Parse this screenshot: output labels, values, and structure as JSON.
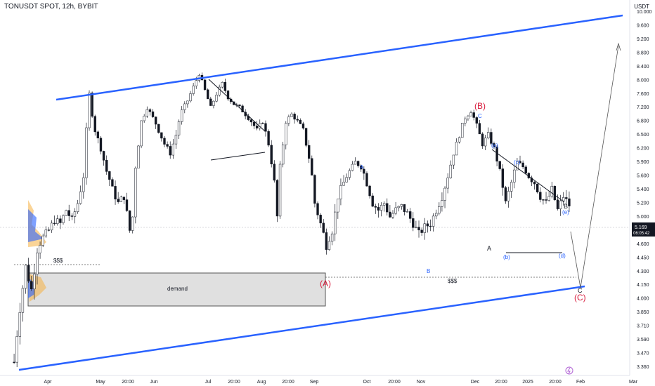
{
  "header": {
    "title": "TONUSDT SPOT, 12h, BYBIT",
    "currency": "USDT"
  },
  "price_badge": {
    "price": "5.169",
    "countdown": "06:05:42"
  },
  "chart_data": {
    "type": "candlestick",
    "ylim": [
      3.3,
      10.2
    ],
    "y_ticks": [
      "10.000",
      "9.600",
      "9.200",
      "8.800",
      "8.400",
      "8.000",
      "7.600",
      "7.200",
      "6.800",
      "6.500",
      "6.200",
      "5.900",
      "5.600",
      "5.400",
      "5.200",
      "5.000",
      "4.800",
      "4.600",
      "4.450",
      "4.300",
      "4.150",
      "4.000",
      "3.850",
      "3.710",
      "3.590",
      "3.470",
      "3.360"
    ],
    "x_ticks": [
      "Apr",
      "May",
      "20:00",
      "Jun",
      "Jul",
      "20:00",
      "Aug",
      "20:00",
      "Sep",
      "Oct",
      "20:00",
      "Nov",
      "Dec",
      "20:00",
      "2025",
      "20:00",
      "Feb",
      "Mar"
    ],
    "close_path": [
      [
        0,
        3.4
      ],
      [
        2,
        3.9
      ],
      [
        4,
        4.35
      ],
      [
        6,
        4.1
      ],
      [
        8,
        4.55
      ],
      [
        10,
        4.7
      ],
      [
        12,
        4.8
      ],
      [
        14,
        4.95
      ],
      [
        16,
        4.9
      ],
      [
        18,
        5.1
      ],
      [
        20,
        4.95
      ],
      [
        22,
        5.2
      ],
      [
        24,
        5.6
      ],
      [
        25,
        6.6
      ],
      [
        26,
        7.6
      ],
      [
        27,
        7.0
      ],
      [
        28,
        6.6
      ],
      [
        30,
        6.2
      ],
      [
        32,
        5.7
      ],
      [
        34,
        5.4
      ],
      [
        36,
        5.2
      ],
      [
        38,
        5.3
      ],
      [
        40,
        4.8
      ],
      [
        41,
        5.0
      ],
      [
        42,
        5.8
      ],
      [
        44,
        6.8
      ],
      [
        46,
        7.2
      ],
      [
        48,
        6.9
      ],
      [
        50,
        6.6
      ],
      [
        52,
        6.3
      ],
      [
        54,
        6.1
      ],
      [
        56,
        6.5
      ],
      [
        58,
        7.1
      ],
      [
        60,
        7.4
      ],
      [
        62,
        7.8
      ],
      [
        64,
        8.2
      ],
      [
        66,
        7.7
      ],
      [
        68,
        7.2
      ],
      [
        70,
        7.6
      ],
      [
        72,
        7.9
      ],
      [
        74,
        7.5
      ],
      [
        76,
        7.3
      ],
      [
        78,
        7.2
      ],
      [
        80,
        7.0
      ],
      [
        82,
        6.8
      ],
      [
        84,
        6.6
      ],
      [
        86,
        6.8
      ],
      [
        88,
        6.3
      ],
      [
        90,
        5.5
      ],
      [
        91,
        5.0
      ],
      [
        92,
        5.8
      ],
      [
        94,
        6.8
      ],
      [
        96,
        7.0
      ],
      [
        98,
        6.8
      ],
      [
        100,
        6.6
      ],
      [
        102,
        6.0
      ],
      [
        104,
        5.2
      ],
      [
        106,
        4.9
      ],
      [
        108,
        4.6
      ],
      [
        110,
        4.8
      ],
      [
        112,
        5.3
      ],
      [
        114,
        5.5
      ],
      [
        116,
        5.7
      ],
      [
        118,
        5.9
      ],
      [
        120,
        5.8
      ],
      [
        122,
        5.5
      ],
      [
        124,
        5.2
      ],
      [
        126,
        5.1
      ],
      [
        128,
        5.2
      ],
      [
        130,
        5.0
      ],
      [
        132,
        5.1
      ],
      [
        134,
        5.15
      ],
      [
        136,
        5.05
      ],
      [
        138,
        4.9
      ],
      [
        140,
        4.75
      ],
      [
        142,
        4.85
      ],
      [
        144,
        4.9
      ],
      [
        146,
        5.1
      ],
      [
        148,
        5.3
      ],
      [
        150,
        5.6
      ],
      [
        152,
        6.1
      ],
      [
        154,
        6.5
      ],
      [
        156,
        6.9
      ],
      [
        158,
        7.1
      ],
      [
        160,
        6.7
      ],
      [
        162,
        6.3
      ],
      [
        164,
        6.5
      ],
      [
        166,
        6.2
      ],
      [
        168,
        5.7
      ],
      [
        170,
        5.2
      ],
      [
        172,
        5.5
      ],
      [
        174,
        5.9
      ],
      [
        176,
        5.8
      ],
      [
        178,
        5.6
      ],
      [
        180,
        5.5
      ],
      [
        182,
        5.3
      ],
      [
        184,
        5.2
      ],
      [
        186,
        5.4
      ],
      [
        188,
        5.1
      ],
      [
        190,
        5.3
      ],
      [
        192,
        5.17
      ]
    ],
    "trend_lines": [
      {
        "name": "upper-channel",
        "points": [
          [
            80,
            7.6
          ],
          [
            886,
            10.05
          ]
        ]
      },
      {
        "name": "lower-channel",
        "points": [
          [
            27,
            3.35
          ],
          [
            832,
            4.3
          ]
        ]
      }
    ],
    "wave_labels": [
      {
        "text": "(B)",
        "price": 7.45,
        "style": "red"
      },
      {
        "text": "(A)",
        "price": 4.38,
        "style": "red"
      },
      {
        "text": "(C)",
        "price": 4.18,
        "style": "red"
      },
      {
        "text": "C",
        "price": 7.12,
        "style": "blue"
      },
      {
        "text": "A",
        "price": 6.15,
        "style": "blue"
      },
      {
        "text": "B",
        "price": 4.55,
        "style": "blue"
      },
      {
        "text": "(a)",
        "price": 6.65,
        "style": "blue"
      },
      {
        "text": "(c)",
        "price": 6.35,
        "style": "blue"
      },
      {
        "text": "(b)",
        "price": 4.86,
        "style": "blue"
      },
      {
        "text": "(d)",
        "price": 4.86,
        "style": "blue"
      },
      {
        "text": "(e)",
        "price": 5.48,
        "style": "blue"
      },
      {
        "text": "A",
        "price": 4.95,
        "style": "black"
      },
      {
        "text": "B",
        "price": 5.58,
        "style": "black"
      },
      {
        "text": "C",
        "price": 4.27,
        "style": "black"
      }
    ],
    "annotations": {
      "demand_label": "demand",
      "liquidity_left": "$$$",
      "liquidity_right": "$$$",
      "demand_zone": [
        4.07,
        4.48
      ]
    }
  }
}
